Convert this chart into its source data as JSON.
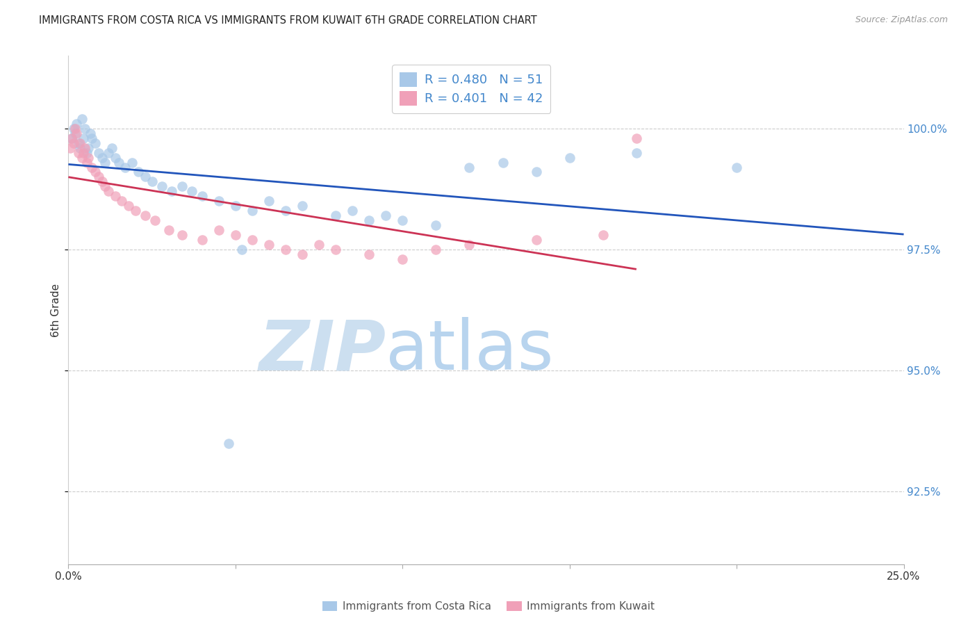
{
  "title": "IMMIGRANTS FROM COSTA RICA VS IMMIGRANTS FROM KUWAIT 6TH GRADE CORRELATION CHART",
  "source": "Source: ZipAtlas.com",
  "ylabel": "6th Grade",
  "xlim": [
    0.0,
    25.0
  ],
  "ylim": [
    91.0,
    101.5
  ],
  "legend_label_blue": "Immigrants from Costa Rica",
  "legend_label_pink": "Immigrants from Kuwait",
  "r_blue": 0.48,
  "n_blue": 51,
  "r_pink": 0.401,
  "n_pink": 42,
  "color_blue": "#a8c8e8",
  "color_pink": "#f0a0b8",
  "color_line_blue": "#2255bb",
  "color_line_pink": "#cc3355",
  "right_axis_color": "#4488cc",
  "grid_color": "#cccccc",
  "yticks": [
    92.5,
    95.0,
    97.5,
    100.0
  ],
  "blue_x": [
    0.1,
    0.15,
    0.2,
    0.25,
    0.3,
    0.35,
    0.4,
    0.45,
    0.5,
    0.55,
    0.6,
    0.65,
    0.7,
    0.8,
    0.9,
    1.0,
    1.1,
    1.2,
    1.3,
    1.4,
    1.5,
    1.7,
    1.9,
    2.1,
    2.3,
    2.5,
    2.8,
    3.1,
    3.4,
    3.7,
    4.0,
    4.5,
    5.0,
    5.5,
    6.0,
    6.5,
    7.0,
    8.0,
    8.5,
    9.0,
    9.5,
    10.0,
    11.0,
    12.0,
    13.0,
    14.0,
    15.0,
    17.0,
    20.0,
    5.2,
    4.8
  ],
  "blue_y": [
    99.8,
    100.0,
    99.9,
    100.1,
    99.7,
    99.6,
    100.2,
    99.8,
    100.0,
    99.5,
    99.6,
    99.9,
    99.8,
    99.7,
    99.5,
    99.4,
    99.3,
    99.5,
    99.6,
    99.4,
    99.3,
    99.2,
    99.3,
    99.1,
    99.0,
    98.9,
    98.8,
    98.7,
    98.8,
    98.7,
    98.6,
    98.5,
    98.4,
    98.3,
    98.5,
    98.3,
    98.4,
    98.2,
    98.3,
    98.1,
    98.2,
    98.1,
    98.0,
    99.2,
    99.3,
    99.1,
    99.4,
    99.5,
    99.2,
    97.5,
    93.5
  ],
  "pink_x": [
    0.05,
    0.1,
    0.15,
    0.2,
    0.25,
    0.3,
    0.35,
    0.4,
    0.45,
    0.5,
    0.55,
    0.6,
    0.7,
    0.8,
    0.9,
    1.0,
    1.1,
    1.2,
    1.4,
    1.6,
    1.8,
    2.0,
    2.3,
    2.6,
    3.0,
    3.4,
    4.0,
    4.5,
    5.0,
    5.5,
    6.0,
    6.5,
    7.0,
    7.5,
    8.0,
    9.0,
    10.0,
    11.0,
    12.0,
    14.0,
    16.0,
    17.0
  ],
  "pink_y": [
    99.6,
    99.8,
    99.7,
    100.0,
    99.9,
    99.5,
    99.7,
    99.4,
    99.5,
    99.6,
    99.3,
    99.4,
    99.2,
    99.1,
    99.0,
    98.9,
    98.8,
    98.7,
    98.6,
    98.5,
    98.4,
    98.3,
    98.2,
    98.1,
    97.9,
    97.8,
    97.7,
    97.9,
    97.8,
    97.7,
    97.6,
    97.5,
    97.4,
    97.6,
    97.5,
    97.4,
    97.3,
    97.5,
    97.6,
    97.7,
    97.8,
    99.8
  ]
}
